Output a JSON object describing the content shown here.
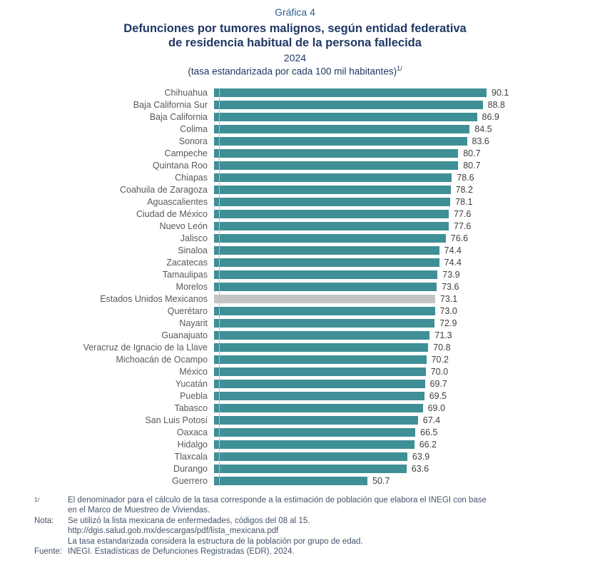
{
  "header": {
    "graf_label": "Gráfica 4",
    "title_line1": "Defunciones por tumores malignos, según entidad federativa",
    "title_line2": "de residencia habitual de la persona fallecida",
    "year": "2024",
    "unit_label": "(tasa estandarizada por cada 100 mil habitantes)",
    "unit_superscript": "1/"
  },
  "chart_data": {
    "type": "bar",
    "orientation": "horizontal",
    "title": "Gráfica 4. Defunciones por tumores malignos, según entidad federativa de residencia habitual de la persona fallecida, 2024",
    "xlabel": "tasa estandarizada por cada 100 mil habitantes",
    "ylabel": "entidad federativa",
    "xlim": [
      0,
      95
    ],
    "grid": false,
    "legend": false,
    "categories": [
      "Chihuahua",
      "Baja California Sur",
      "Baja California",
      "Colima",
      "Sonora",
      "Campeche",
      "Quintana Roo",
      "Chiapas",
      "Coahuila de Zaragoza",
      "Aguascalientes",
      "Ciudad de México",
      "Nuevo León",
      "Jalisco",
      "Sinaloa",
      "Zacatecas",
      "Tamaulipas",
      "Morelos",
      "Estados Unidos Mexicanos",
      "Querétaro",
      "Nayarit",
      "Guanajuato",
      "Veracruz de Ignacio de la Llave",
      "Michoacán de Ocampo",
      "México",
      "Yucatán",
      "Puebla",
      "Tabasco",
      "San Luis Potosí",
      "Oaxaca",
      "Hidalgo",
      "Tlaxcala",
      "Durango",
      "Guerrero"
    ],
    "values": [
      90.1,
      88.8,
      86.9,
      84.5,
      83.6,
      80.7,
      80.7,
      78.6,
      78.2,
      78.1,
      77.6,
      77.6,
      76.6,
      74.4,
      74.4,
      73.9,
      73.6,
      73.1,
      73.0,
      72.9,
      71.3,
      70.8,
      70.2,
      70.0,
      69.7,
      69.5,
      69.0,
      67.4,
      66.5,
      66.2,
      63.9,
      63.6,
      50.7
    ],
    "highlight_category": "Estados Unidos Mexicanos",
    "bar_color": "#3F8F96",
    "highlight_color": "#C4C4C4",
    "axis_color": "#BFBFBF"
  },
  "footnotes": {
    "notes": [
      {
        "label": "1/",
        "superscript": true,
        "lines": [
          "El denominador para el cálculo de la tasa corresponde a la estimación de población que elabora el INEGI con base",
          "en el Marco de Muestreo de Viviendas."
        ]
      },
      {
        "label": "Nota:",
        "superscript": false,
        "lines": [
          "Se utilizó la lista mexicana de enfermedades, códigos del 08 al 15.",
          "http://dgis.salud.gob.mx/descargas/pdf/lista_mexicana.pdf",
          "La tasa estandarizada considera la estructura de la población por grupo de edad."
        ]
      },
      {
        "label": "Fuente:",
        "superscript": false,
        "lines": [
          "INEGI. Estadísticas de Defunciones Registradas (EDR), 2024."
        ]
      }
    ]
  }
}
